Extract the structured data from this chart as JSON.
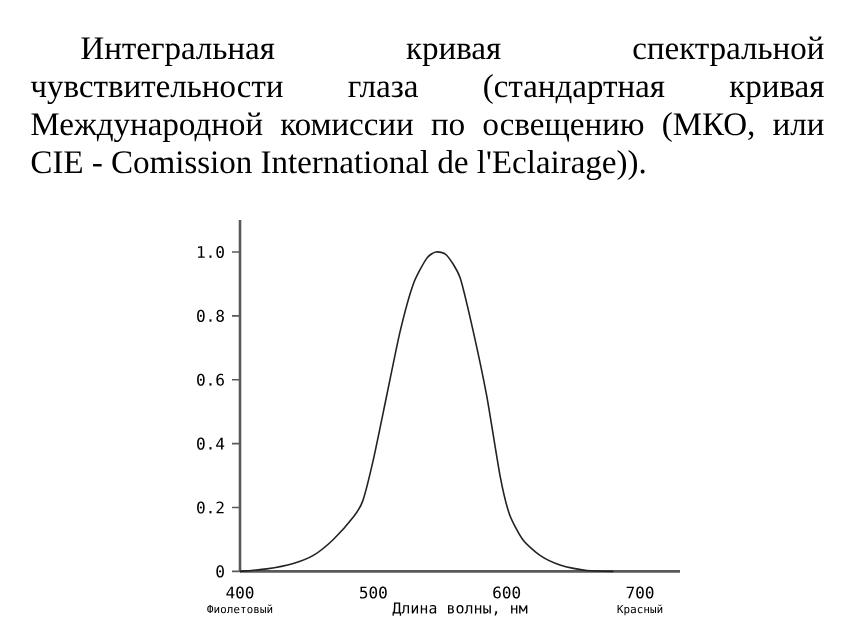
{
  "chart_data": {
    "type": "line",
    "title": "Интегральная кривая спектральной чувствительности глаза (стандартная кривая Международной комиссии по освещению (МКО, или CIE - Comission International de l'Eclairage)).",
    "xlabel": "Длина волны, нм",
    "annotations": [
      "Фиолетовый",
      "Красный"
    ],
    "x": [
      400,
      420,
      440,
      455,
      470,
      485,
      492,
      500,
      510,
      520,
      530,
      540,
      547,
      555,
      565,
      575,
      585,
      595,
      602,
      612,
      625,
      640,
      660,
      680
    ],
    "series": [
      {
        "color": "#222222",
        "values": [
          0,
          0.008,
          0.025,
          0.05,
          0.1,
          0.17,
          0.22,
          0.35,
          0.55,
          0.75,
          0.9,
          0.98,
          1.0,
          0.99,
          0.92,
          0.75,
          0.55,
          0.3,
          0.18,
          0.1,
          0.05,
          0.02,
          0.003,
          0
        ]
      }
    ],
    "xlim": [
      400,
      730
    ],
    "ylim": [
      0,
      1.1
    ],
    "xticks": [
      400,
      500,
      600,
      700
    ],
    "yticks": [
      {
        "value": 0,
        "label": "0"
      },
      {
        "value": 0.2,
        "label": "0.2"
      },
      {
        "value": 0.4,
        "label": "0.4"
      },
      {
        "value": 0.6,
        "label": "0.6"
      },
      {
        "value": 0.8,
        "label": "0.8"
      },
      {
        "value": 1.0,
        "label": "1.0"
      }
    ],
    "grid": false,
    "marker": "none",
    "line_style": "solid"
  }
}
